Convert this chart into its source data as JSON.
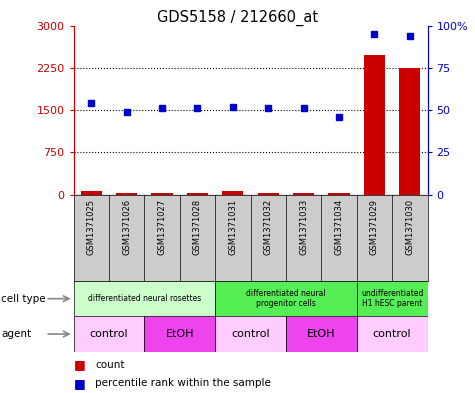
{
  "title": "GDS5158 / 212660_at",
  "samples": [
    "GSM1371025",
    "GSM1371026",
    "GSM1371027",
    "GSM1371028",
    "GSM1371031",
    "GSM1371032",
    "GSM1371033",
    "GSM1371034",
    "GSM1371029",
    "GSM1371030"
  ],
  "counts": [
    60,
    30,
    35,
    35,
    55,
    30,
    35,
    20,
    2480,
    2250
  ],
  "percentile_ranks": [
    54,
    49,
    51,
    51,
    52,
    51,
    51,
    46,
    95,
    94
  ],
  "ylim_left": [
    0,
    3000
  ],
  "ylim_right": [
    0,
    100
  ],
  "yticks_left": [
    0,
    750,
    1500,
    2250,
    3000
  ],
  "yticks_right": [
    0,
    25,
    50,
    75,
    100
  ],
  "cell_type_groups": [
    {
      "label": "differentiated neural rosettes",
      "start": 0,
      "end": 3,
      "color": "#ccffcc"
    },
    {
      "label": "differentiated neural\nprogenitor cells",
      "start": 4,
      "end": 7,
      "color": "#55ee55"
    },
    {
      "label": "undifferentiated\nH1 hESC parent",
      "start": 8,
      "end": 9,
      "color": "#55ee55"
    }
  ],
  "agent_groups": [
    {
      "label": "control",
      "start": 0,
      "end": 1,
      "color": "#ffccff"
    },
    {
      "label": "EtOH",
      "start": 2,
      "end": 3,
      "color": "#ee44ee"
    },
    {
      "label": "control",
      "start": 4,
      "end": 5,
      "color": "#ffccff"
    },
    {
      "label": "EtOH",
      "start": 6,
      "end": 7,
      "color": "#ee44ee"
    },
    {
      "label": "control",
      "start": 8,
      "end": 9,
      "color": "#ffccff"
    }
  ],
  "bar_color": "#cc0000",
  "dot_color": "#0000cc",
  "left_axis_color": "#cc0000",
  "right_axis_color": "#0000cc",
  "sample_box_color": "#cccccc",
  "background_color": "#ffffff",
  "hgrid_ticks": [
    750,
    1500,
    2250
  ]
}
